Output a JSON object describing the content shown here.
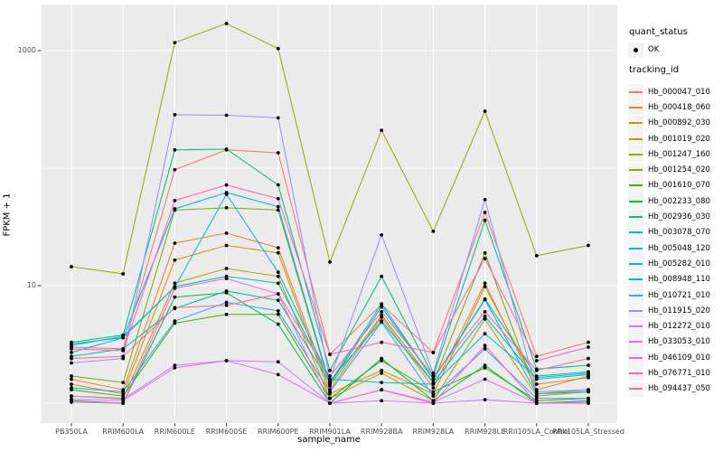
{
  "chart_data": {
    "type": "line",
    "title": "",
    "xlabel": "sample_name",
    "ylabel": "FPKM + 1",
    "y_scale": "log10",
    "y_tick_labels": [
      "1000",
      "10"
    ],
    "y_major_breaks": [
      1000,
      10
    ],
    "y_minor_breaks": [
      100,
      1
    ],
    "legend_position": "right",
    "point_color": "#000000",
    "point_shape": "filled-circle",
    "categories": [
      "PB350LA",
      "RRIM600LA",
      "RRIM600LE",
      "RRIM600SE",
      "RRIM600PE",
      "RRIM901LA",
      "RRIM928BA",
      "RRIM928LA",
      "RRIM928LE",
      "RRII105LA_Control",
      "RRII105LA_Stressed"
    ],
    "series": [
      {
        "name": "Hb_000047_010",
        "color": "#F8766D",
        "values": [
          3.0,
          2.9,
          97,
          143,
          135,
          2.6,
          6.9,
          2.7,
          42,
          2.5,
          3.3
        ]
      },
      {
        "name": "Hb_000418_060",
        "color": "#EA8331",
        "values": [
          1.6,
          1.3,
          23,
          28,
          21,
          1.3,
          5.4,
          1.35,
          10.5,
          1.3,
          1.7
        ]
      },
      {
        "name": "Hb_000892_030",
        "color": "#D89000",
        "values": [
          1.45,
          1.2,
          16.5,
          22,
          19,
          1.2,
          1.9,
          1.2,
          9.8,
          1.45,
          1.65
        ]
      },
      {
        "name": "Hb_001019_020",
        "color": "#C09B00",
        "values": [
          1.15,
          1.1,
          10.5,
          14,
          12,
          1.1,
          1.8,
          1.05,
          5.2,
          1.15,
          1.25
        ]
      },
      {
        "name": "Hb_001247_160",
        "color": "#A3A500",
        "values": [
          14.5,
          12.6,
          1170,
          1700,
          1040,
          15.9,
          210,
          29,
          305,
          18,
          22
        ]
      },
      {
        "name": "Hb_001254_020",
        "color": "#7CAE00",
        "values": [
          1.7,
          1.5,
          44,
          46,
          44,
          1.4,
          5.6,
          1.5,
          19,
          1.2,
          1.3
        ]
      },
      {
        "name": "Hb_001610_070",
        "color": "#39B600",
        "values": [
          1.3,
          1.15,
          4.8,
          5.7,
          5.7,
          1.1,
          2.3,
          1.25,
          2.0,
          1.05,
          1.1
        ]
      },
      {
        "name": "Hb_002233_080",
        "color": "#00BB4E",
        "values": [
          1.05,
          1.0,
          8.0,
          8.7,
          4.7,
          1.0,
          2.4,
          1.05,
          2.1,
          1.0,
          1.05
        ]
      },
      {
        "name": "Hb_002936_030",
        "color": "#00BF7D",
        "values": [
          3.3,
          3.8,
          143,
          145,
          72,
          1.9,
          12,
          1.7,
          36,
          1.95,
          2.1
        ]
      },
      {
        "name": "Hb_003078_070",
        "color": "#00C1A3",
        "values": [
          2.5,
          2.9,
          6.4,
          9.0,
          7.5,
          1.5,
          7.0,
          1.6,
          7.7,
          1.7,
          1.85
        ]
      },
      {
        "name": "Hb_005048_120",
        "color": "#00BFC4",
        "values": [
          3.2,
          3.6,
          9.8,
          12,
          10.5,
          1.55,
          5.0,
          1.5,
          5.5,
          1.6,
          1.75
        ]
      },
      {
        "name": "Hb_005282_010",
        "color": "#00BAE0",
        "values": [
          3.1,
          3.7,
          9.7,
          60,
          13,
          1.6,
          1.5,
          1.45,
          3.9,
          1.65,
          1.8
        ]
      },
      {
        "name": "Hb_008948_110",
        "color": "#00B0F6",
        "values": [
          2.7,
          3.6,
          45,
          62,
          47,
          1.45,
          6.6,
          1.6,
          7.6,
          1.2,
          1.25
        ]
      },
      {
        "name": "Hb_010721_010",
        "color": "#35A2FF",
        "values": [
          1.35,
          1.25,
          5.0,
          7.2,
          6.1,
          1.25,
          4.9,
          1.15,
          2.9,
          1.1,
          1.1
        ]
      },
      {
        "name": "Hb_011915_020",
        "color": "#9590FF",
        "values": [
          2.2,
          2.4,
          285,
          282,
          268,
          1.6,
          27,
          1.8,
          54,
          1.25,
          1.3
        ]
      },
      {
        "name": "Hb_012272_010",
        "color": "#C77CFF",
        "values": [
          1.15,
          1.08,
          2.1,
          2.3,
          2.25,
          1.0,
          1.05,
          1.0,
          1.07,
          1.0,
          1.0
        ]
      },
      {
        "name": "Hb_033053_010",
        "color": "#E76BF3",
        "values": [
          1.08,
          1.05,
          2.0,
          2.3,
          1.75,
          1.0,
          1.3,
          1.02,
          1.6,
          1.0,
          1.02
        ]
      },
      {
        "name": "Hb_046109_010",
        "color": "#FA62DB",
        "values": [
          1.02,
          1.0,
          9.5,
          11.5,
          8.5,
          1.0,
          1.3,
          1.0,
          3.1,
          1.0,
          1.0
        ]
      },
      {
        "name": "Hb_076771_010",
        "color": "#FF62BC",
        "values": [
          2.9,
          2.8,
          53,
          72,
          55,
          2.6,
          3.3,
          2.7,
          17,
          2.3,
          3.0
        ]
      },
      {
        "name": "Hb_094437_050",
        "color": "#FF6A98",
        "values": [
          2.4,
          2.5,
          6.5,
          6.8,
          8.5,
          1.7,
          6.0,
          1.7,
          6.0,
          1.9,
          2.4
        ]
      }
    ]
  },
  "legend": {
    "quant_status_title": "quant_status",
    "quant_status_items": [
      {
        "label": "OK",
        "marker": "point"
      }
    ],
    "tracking_id_title": "tracking_id"
  },
  "colors": {
    "panel_bg": "#EBEBEB",
    "grid": "#FFFFFF",
    "axis_text": "#4D4D4D",
    "tick_mark": "#333333",
    "point": "#000000",
    "legend_key_bg": "#F4F4F4"
  }
}
